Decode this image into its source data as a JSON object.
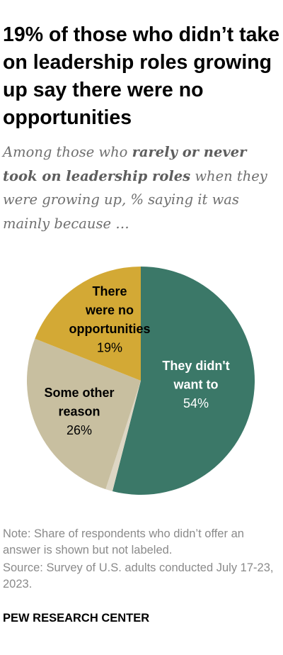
{
  "header": {
    "title": "19% of those who didn’t take on leadership roles growing up say there were no opportunities",
    "subtitle_pre": "Among those who ",
    "subtitle_bold": "rarely or never took on leadership roles",
    "subtitle_post": " when they were growing up, % saying it was mainly because …"
  },
  "chart_data": {
    "type": "pie",
    "title": "19% of those who didn’t take on leadership roles growing up say there were no opportunities",
    "slices": [
      {
        "label_lines": [
          "They didn't",
          "want to"
        ],
        "value_label": "54%",
        "value": 54,
        "color": "#3b7868",
        "text_color": "#ffffff"
      },
      {
        "label_lines": [],
        "value_label": "",
        "value": 1,
        "color": "#ddd6c4",
        "text_color": "#000000"
      },
      {
        "label_lines": [
          "Some other",
          "reason"
        ],
        "value_label": "26%",
        "value": 26,
        "color": "#c8bfa0",
        "text_color": "#000000"
      },
      {
        "label_lines": [
          "There",
          "were no",
          "opportunities"
        ],
        "value_label": "19%",
        "value": 19,
        "color": "#d3a935",
        "text_color": "#000000"
      }
    ]
  },
  "footer": {
    "note": "Note: Share of respondents who didn’t offer an answer is shown but not labeled.",
    "source": "Source: Survey of U.S. adults conducted July 17-23, 2023.",
    "brand": "PEW RESEARCH CENTER"
  }
}
